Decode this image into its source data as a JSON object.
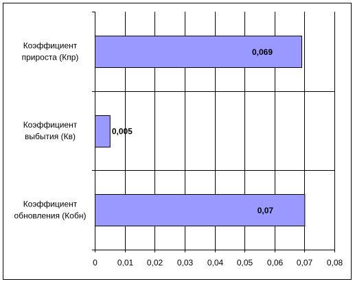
{
  "chart_data": {
    "type": "bar",
    "orientation": "horizontal",
    "categories": [
      [
        "Коэффициент",
        "прироста (Кпр)"
      ],
      [
        "Коэффициент",
        "выбытия (Кв)"
      ],
      [
        "Коэффициент",
        "обновления (Кобн)"
      ]
    ],
    "values": [
      0.069,
      0.005,
      0.07
    ],
    "value_labels": [
      "0,069",
      "0,005",
      "0,07"
    ],
    "xlim": [
      0,
      0.08
    ],
    "x_ticks": [
      0,
      0.01,
      0.02,
      0.03,
      0.04,
      0.05,
      0.06,
      0.07,
      0.08
    ],
    "x_tick_labels": [
      "0",
      "0,01",
      "0,02",
      "0,03",
      "0,04",
      "0,05",
      "0,06",
      "0,07",
      "0,08"
    ],
    "grid": "vertical",
    "legend": "none",
    "colors": {
      "bar_fill": "#9999ff",
      "bar_stroke": "#000000",
      "grid": "#000000",
      "frame": "#000000",
      "text": "#000000"
    }
  }
}
